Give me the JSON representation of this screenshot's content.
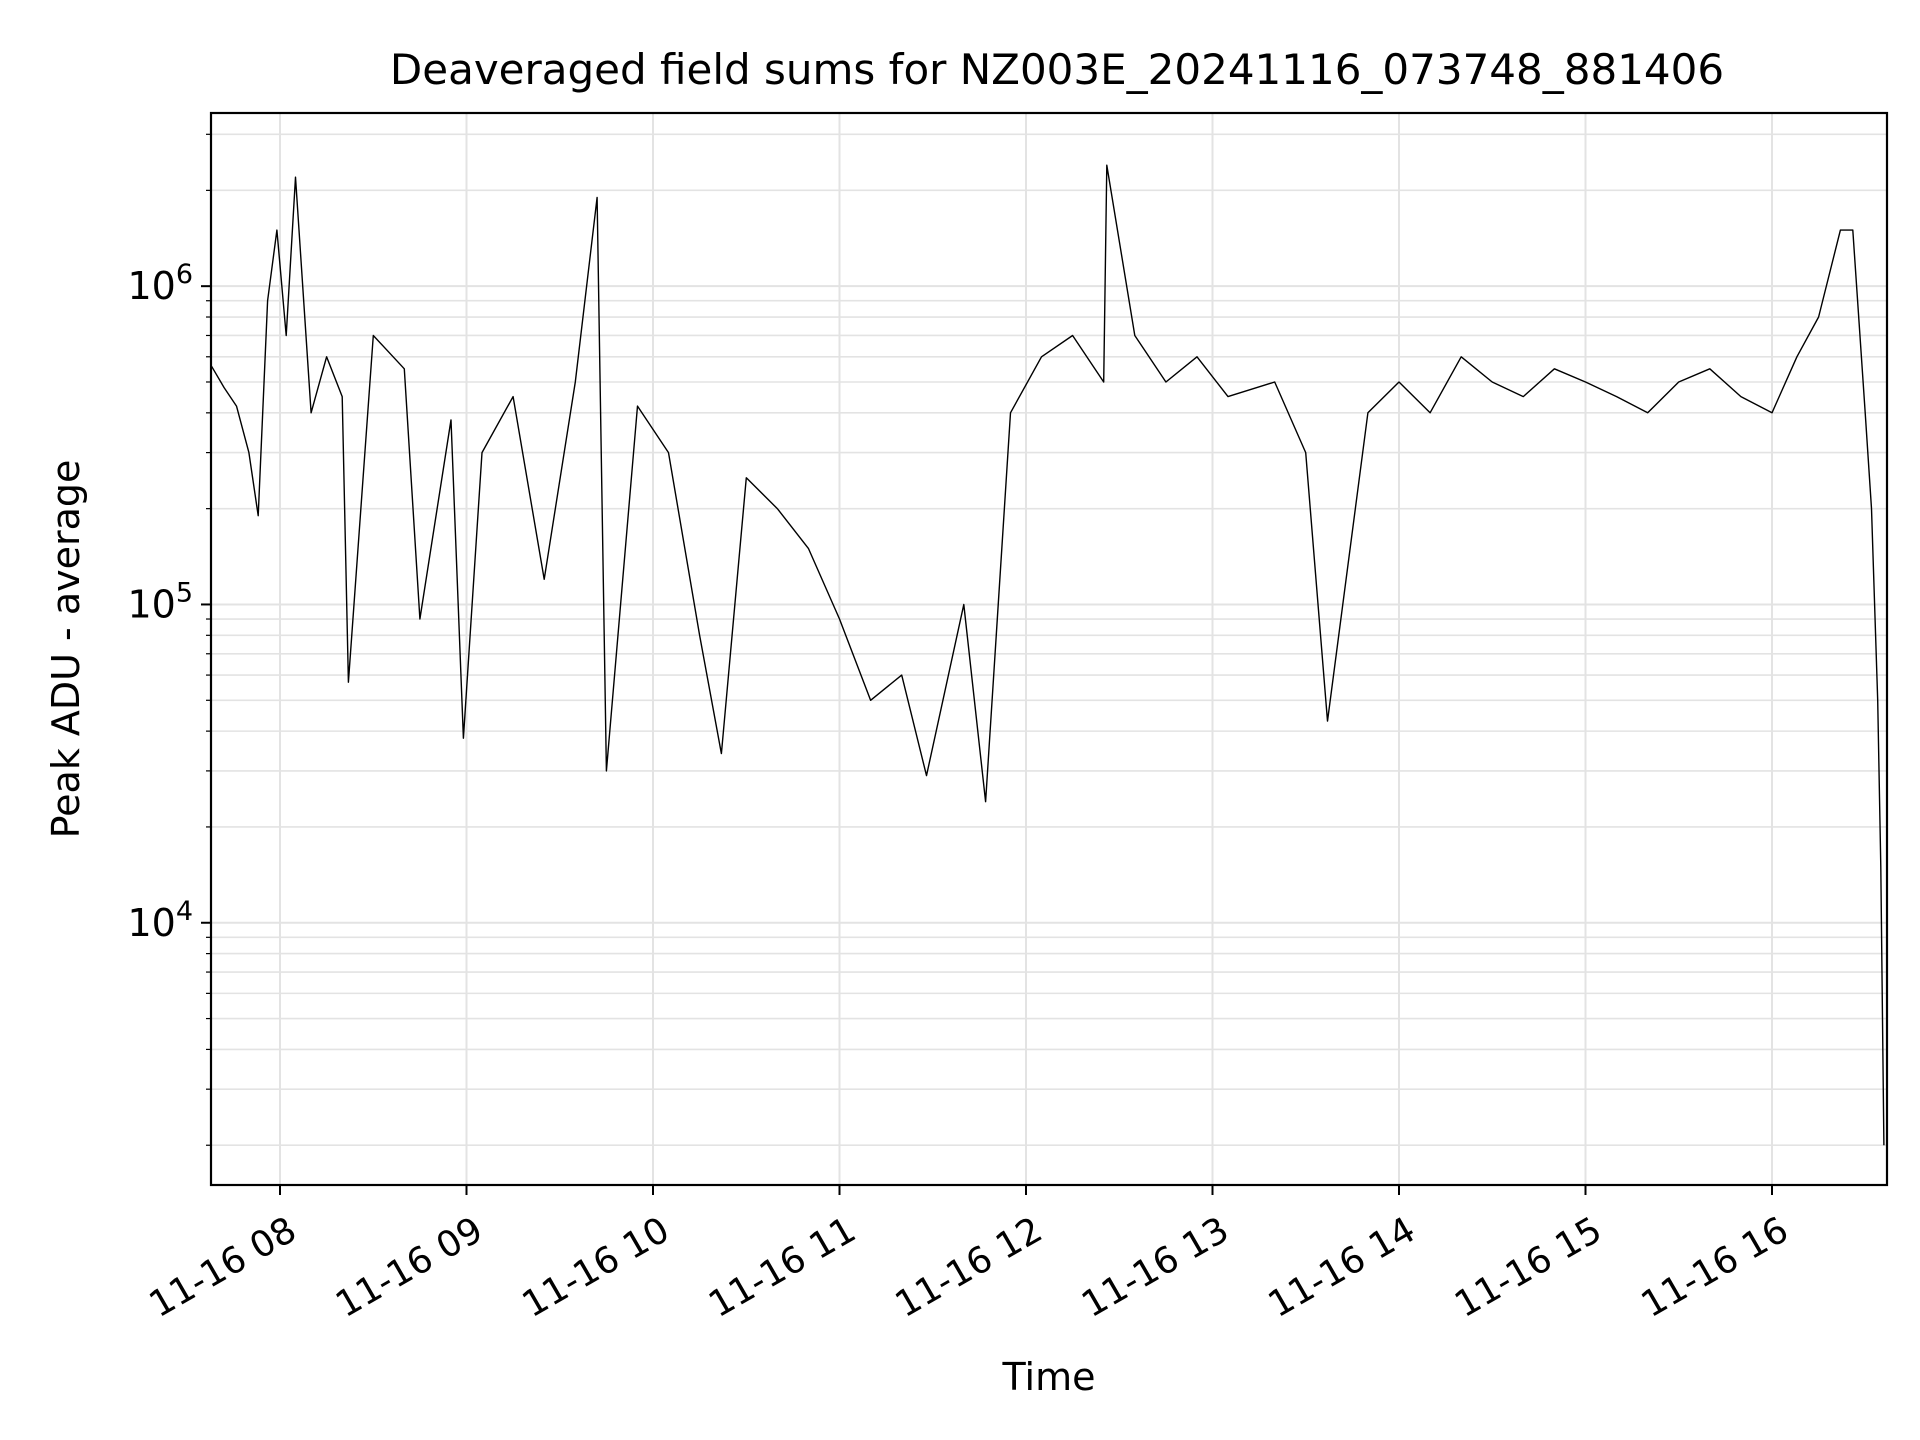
{
  "chart_data": {
    "type": "line",
    "title": "Deaveraged field sums for NZ003E_20241116_073748_881406",
    "xlabel": "Time",
    "ylabel": "Peak ADU - average",
    "yscale": "log",
    "ylim": [
      1500,
      3500000
    ],
    "xlim": [
      "2024-11-16 07:37:48",
      "2024-11-16 16:37:00"
    ],
    "grid": true,
    "legend": "none",
    "line_color": "#000000",
    "x_ticks": [
      {
        "t": "2024-11-16 08:00",
        "label": "11-16 08"
      },
      {
        "t": "2024-11-16 09:00",
        "label": "11-16 09"
      },
      {
        "t": "2024-11-16 10:00",
        "label": "11-16 10"
      },
      {
        "t": "2024-11-16 11:00",
        "label": "11-16 11"
      },
      {
        "t": "2024-11-16 12:00",
        "label": "11-16 12"
      },
      {
        "t": "2024-11-16 13:00",
        "label": "11-16 13"
      },
      {
        "t": "2024-11-16 14:00",
        "label": "11-16 14"
      },
      {
        "t": "2024-11-16 15:00",
        "label": "11-16 15"
      },
      {
        "t": "2024-11-16 16:00",
        "label": "11-16 16"
      }
    ],
    "y_ticks": [
      {
        "value": 10000,
        "base": "10",
        "exp": "4"
      },
      {
        "value": 100000,
        "base": "10",
        "exp": "5"
      },
      {
        "value": 1000000,
        "base": "10",
        "exp": "6"
      }
    ],
    "series": [
      {
        "points": [
          [
            "2024-11-16 07:38",
            560000
          ],
          [
            "2024-11-16 07:42",
            480000
          ],
          [
            "2024-11-16 07:46",
            420000
          ],
          [
            "2024-11-16 07:50",
            300000
          ],
          [
            "2024-11-16 07:53",
            190000
          ],
          [
            "2024-11-16 07:56",
            900000
          ],
          [
            "2024-11-16 07:59",
            1500000
          ],
          [
            "2024-11-16 08:02",
            700000
          ],
          [
            "2024-11-16 08:05",
            2200000
          ],
          [
            "2024-11-16 08:10",
            400000
          ],
          [
            "2024-11-16 08:15",
            600000
          ],
          [
            "2024-11-16 08:20",
            450000
          ],
          [
            "2024-11-16 08:22",
            57000
          ],
          [
            "2024-11-16 08:30",
            700000
          ],
          [
            "2024-11-16 08:40",
            550000
          ],
          [
            "2024-11-16 08:45",
            90000
          ],
          [
            "2024-11-16 08:55",
            380000
          ],
          [
            "2024-11-16 08:59",
            38000
          ],
          [
            "2024-11-16 09:05",
            300000
          ],
          [
            "2024-11-16 09:15",
            450000
          ],
          [
            "2024-11-16 09:25",
            120000
          ],
          [
            "2024-11-16 09:35",
            500000
          ],
          [
            "2024-11-16 09:42",
            1900000
          ],
          [
            "2024-11-16 09:45",
            30000
          ],
          [
            "2024-11-16 09:55",
            420000
          ],
          [
            "2024-11-16 10:05",
            300000
          ],
          [
            "2024-11-16 10:15",
            80000
          ],
          [
            "2024-11-16 10:22",
            34000
          ],
          [
            "2024-11-16 10:30",
            250000
          ],
          [
            "2024-11-16 10:40",
            200000
          ],
          [
            "2024-11-16 10:50",
            150000
          ],
          [
            "2024-11-16 11:00",
            90000
          ],
          [
            "2024-11-16 11:10",
            50000
          ],
          [
            "2024-11-16 11:20",
            60000
          ],
          [
            "2024-11-16 11:28",
            29000
          ],
          [
            "2024-11-16 11:40",
            100000
          ],
          [
            "2024-11-16 11:47",
            24000
          ],
          [
            "2024-11-16 11:55",
            400000
          ],
          [
            "2024-11-16 12:05",
            600000
          ],
          [
            "2024-11-16 12:15",
            700000
          ],
          [
            "2024-11-16 12:25",
            500000
          ],
          [
            "2024-11-16 12:26",
            2400000
          ],
          [
            "2024-11-16 12:35",
            700000
          ],
          [
            "2024-11-16 12:45",
            500000
          ],
          [
            "2024-11-16 12:55",
            600000
          ],
          [
            "2024-11-16 13:05",
            450000
          ],
          [
            "2024-11-16 13:20",
            500000
          ],
          [
            "2024-11-16 13:30",
            300000
          ],
          [
            "2024-11-16 13:37",
            43000
          ],
          [
            "2024-11-16 13:50",
            400000
          ],
          [
            "2024-11-16 14:00",
            500000
          ],
          [
            "2024-11-16 14:10",
            400000
          ],
          [
            "2024-11-16 14:20",
            600000
          ],
          [
            "2024-11-16 14:30",
            500000
          ],
          [
            "2024-11-16 14:40",
            450000
          ],
          [
            "2024-11-16 14:50",
            550000
          ],
          [
            "2024-11-16 15:00",
            500000
          ],
          [
            "2024-11-16 15:10",
            450000
          ],
          [
            "2024-11-16 15:20",
            400000
          ],
          [
            "2024-11-16 15:30",
            500000
          ],
          [
            "2024-11-16 15:40",
            550000
          ],
          [
            "2024-11-16 15:50",
            450000
          ],
          [
            "2024-11-16 16:00",
            400000
          ],
          [
            "2024-11-16 16:08",
            600000
          ],
          [
            "2024-11-16 16:15",
            800000
          ],
          [
            "2024-11-16 16:22",
            1500000
          ],
          [
            "2024-11-16 16:26",
            1500000
          ],
          [
            "2024-11-16 16:30",
            400000
          ],
          [
            "2024-11-16 16:32",
            200000
          ],
          [
            "2024-11-16 16:34",
            50000
          ],
          [
            "2024-11-16 16:35",
            15000
          ],
          [
            "2024-11-16 16:36",
            2000
          ]
        ]
      }
    ]
  }
}
